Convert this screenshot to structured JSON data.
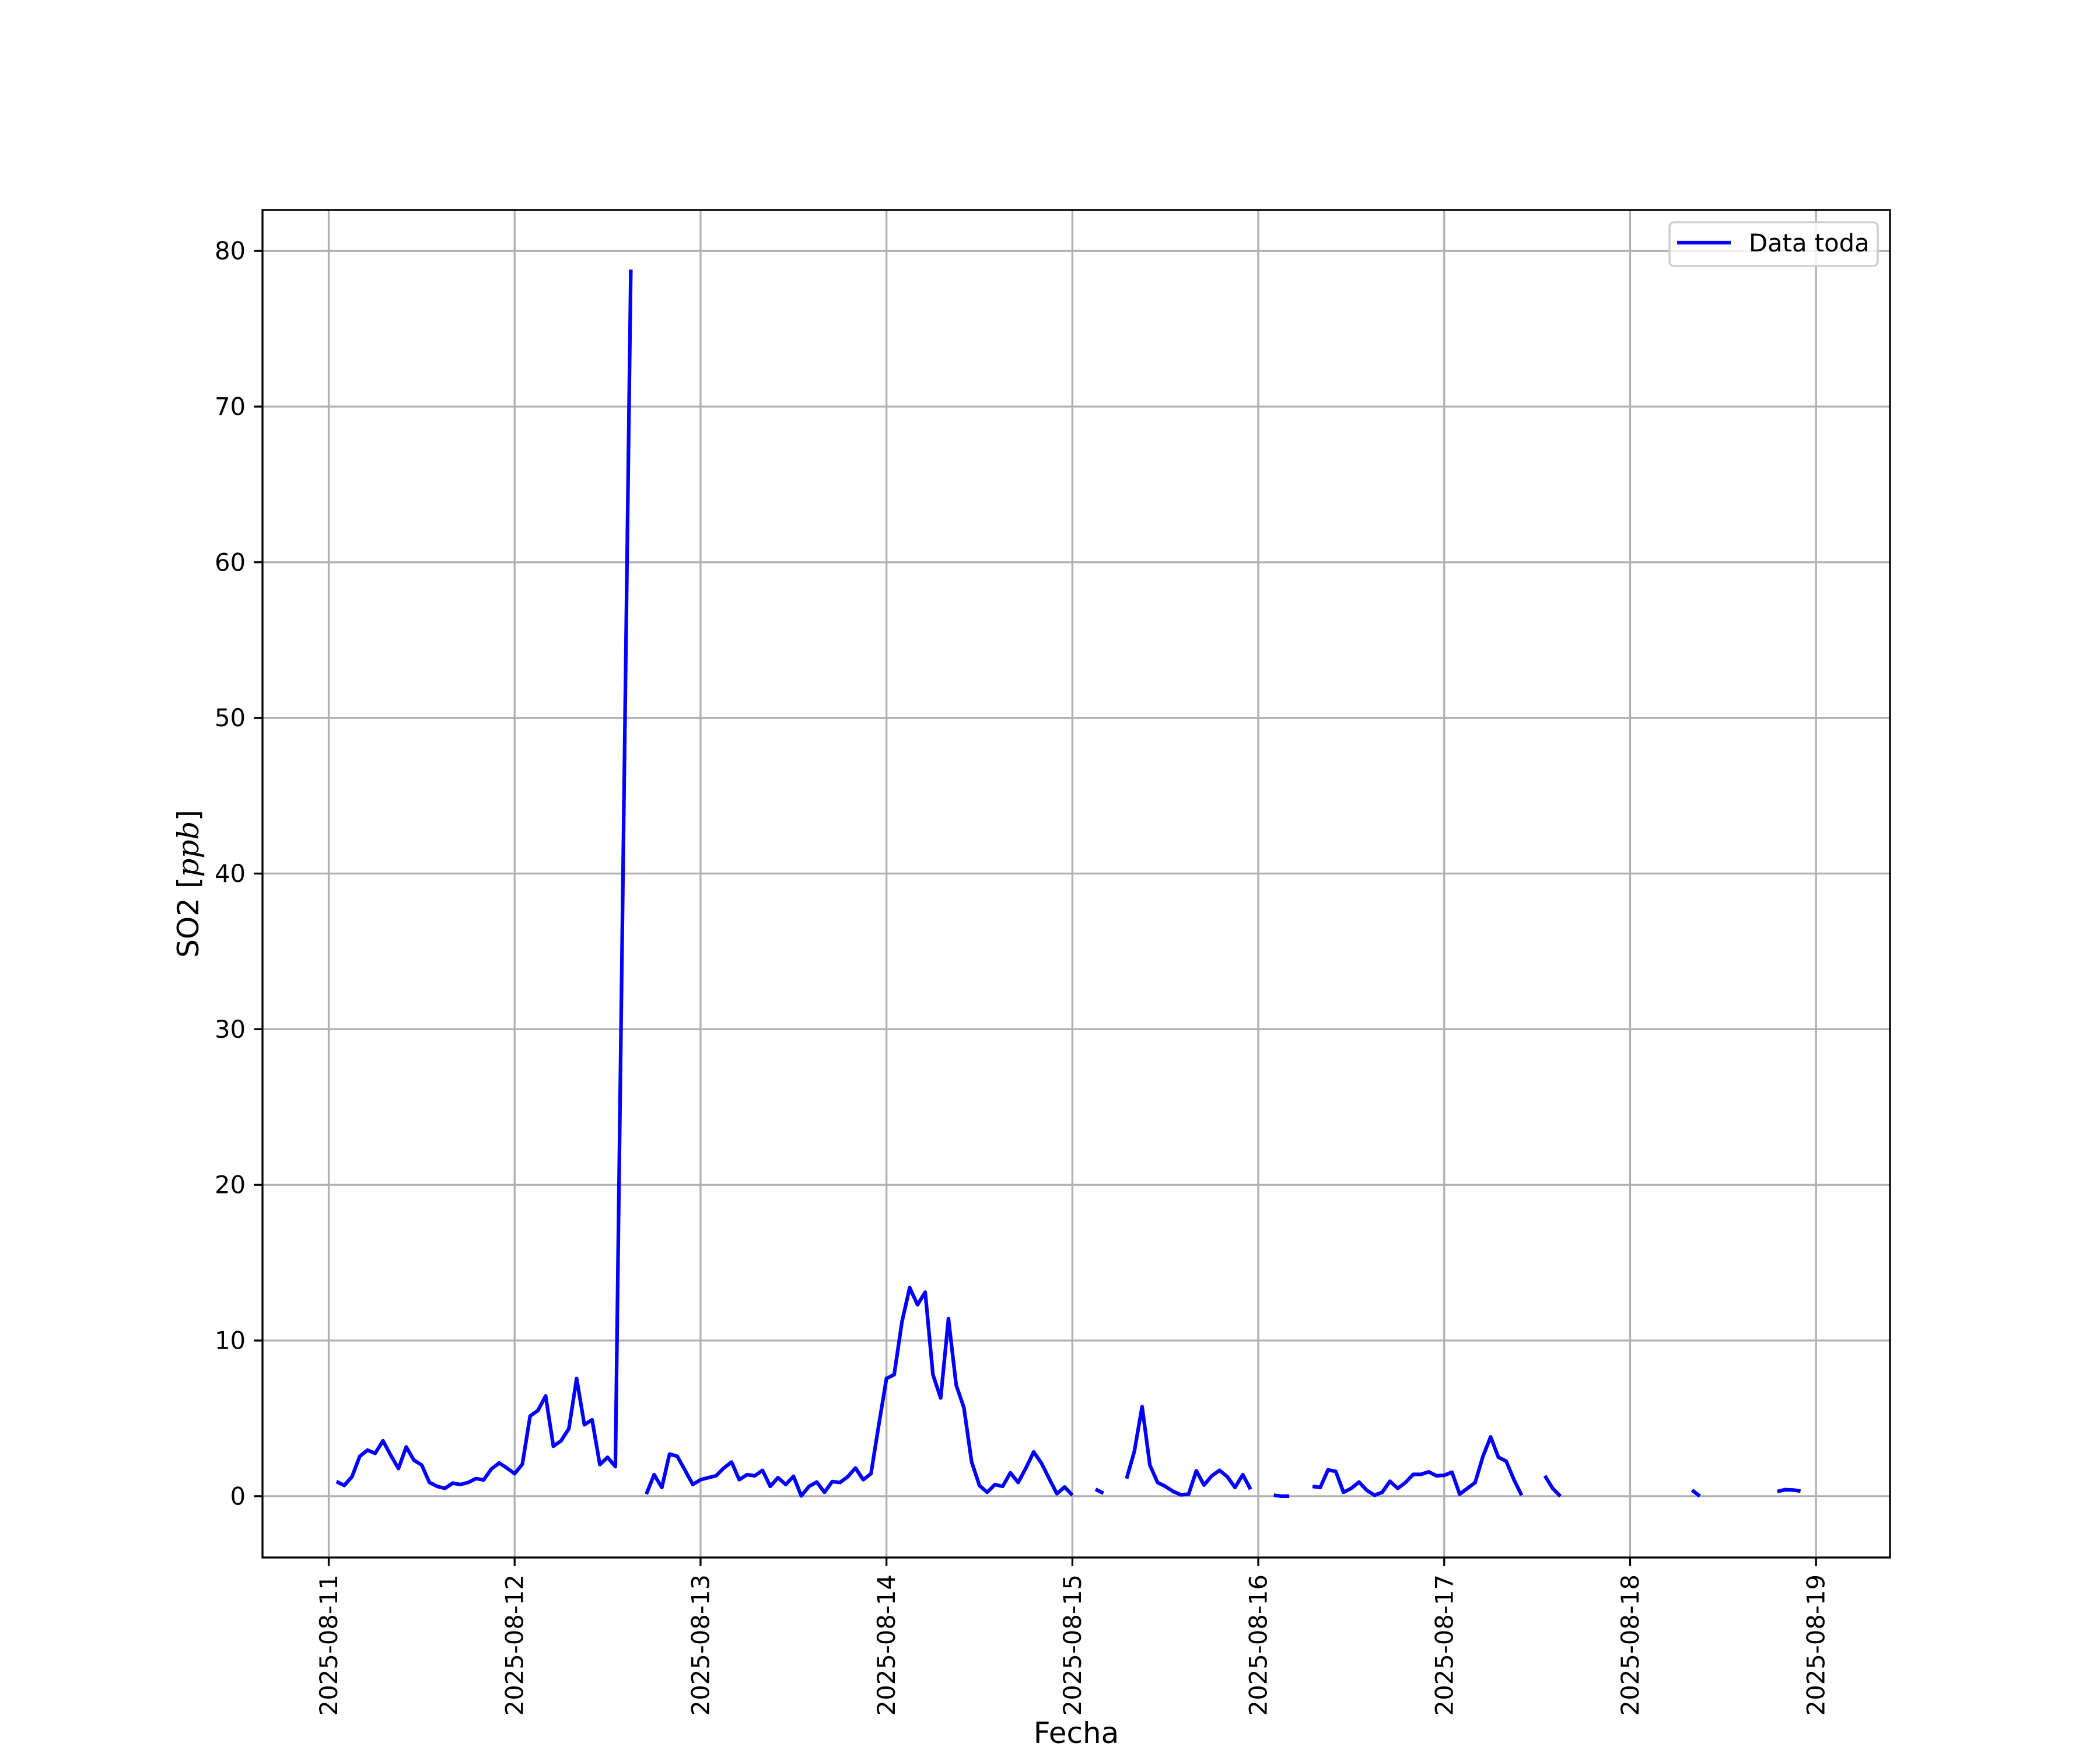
{
  "chart_data": {
    "type": "line",
    "title": "",
    "xlabel": "Fecha",
    "ylabel": "SO2 [ppb]",
    "ylabel_parts": {
      "prefix": "SO2 [",
      "unit": "ppb",
      "suffix": "]"
    },
    "xlim": [
      "2025-08-10 15:27",
      "2025-08-19 09:33"
    ],
    "ylim": [
      -3.94,
      82.63
    ],
    "grid": true,
    "legend_placement": "top-right",
    "x_ticks": [
      "2025-08-11",
      "2025-08-12",
      "2025-08-13",
      "2025-08-14",
      "2025-08-15",
      "2025-08-16",
      "2025-08-17",
      "2025-08-18",
      "2025-08-19"
    ],
    "y_ticks": [
      0,
      10,
      20,
      30,
      40,
      50,
      60,
      70,
      80
    ],
    "series": [
      {
        "name": "Data toda",
        "color": "#0000ff",
        "segments": [
          [
            [
              "2025-08-11 01:00",
              0.94
            ],
            [
              "2025-08-11 02:00",
              0.69
            ],
            [
              "2025-08-11 03:00",
              1.25
            ],
            [
              "2025-08-11 04:00",
              2.56
            ],
            [
              "2025-08-11 05:00",
              2.96
            ],
            [
              "2025-08-11 06:00",
              2.75
            ],
            [
              "2025-08-11 07:00",
              3.56
            ],
            [
              "2025-08-11 08:00",
              2.63
            ],
            [
              "2025-08-11 09:00",
              1.78
            ],
            [
              "2025-08-11 10:00",
              3.16
            ],
            [
              "2025-08-11 11:00",
              2.31
            ],
            [
              "2025-08-11 12:00",
              2.0
            ],
            [
              "2025-08-11 13:00",
              0.88
            ],
            [
              "2025-08-11 14:00",
              0.63
            ],
            [
              "2025-08-11 15:00",
              0.5
            ],
            [
              "2025-08-11 16:00",
              0.84
            ],
            [
              "2025-08-11 17:00",
              0.75
            ],
            [
              "2025-08-11 18:00",
              0.88
            ],
            [
              "2025-08-11 19:00",
              1.13
            ],
            [
              "2025-08-11 20:00",
              1.04
            ],
            [
              "2025-08-11 21:00",
              1.75
            ],
            [
              "2025-08-11 22:00",
              2.13
            ],
            [
              "2025-08-11 23:00",
              1.81
            ],
            [
              "2025-08-12 00:00",
              1.44
            ],
            [
              "2025-08-12 01:00",
              2.06
            ],
            [
              "2025-08-12 02:00",
              5.15
            ],
            [
              "2025-08-12 03:00",
              5.5
            ],
            [
              "2025-08-12 04:00",
              6.44
            ],
            [
              "2025-08-12 05:00",
              3.21
            ],
            [
              "2025-08-12 06:00",
              3.56
            ],
            [
              "2025-08-12 07:00",
              4.34
            ],
            [
              "2025-08-12 08:00",
              7.56
            ],
            [
              "2025-08-12 09:00",
              4.59
            ],
            [
              "2025-08-12 10:00",
              4.91
            ],
            [
              "2025-08-12 11:00",
              2.03
            ],
            [
              "2025-08-12 12:00",
              2.5
            ],
            [
              "2025-08-12 13:00",
              1.9
            ],
            [
              "2025-08-12 15:00",
              78.8
            ]
          ],
          [
            [
              "2025-08-12 17:00",
              0.13
            ],
            [
              "2025-08-12 18:00",
              1.38
            ],
            [
              "2025-08-12 19:00",
              0.56
            ],
            [
              "2025-08-12 20:00",
              2.71
            ],
            [
              "2025-08-12 21:00",
              2.56
            ],
            [
              "2025-08-12 22:00",
              1.66
            ],
            [
              "2025-08-12 23:00",
              0.75
            ],
            [
              "2025-08-13 00:00",
              1.06
            ],
            [
              "2025-08-13 01:00",
              1.19
            ],
            [
              "2025-08-13 02:00",
              1.31
            ],
            [
              "2025-08-13 03:00",
              1.81
            ],
            [
              "2025-08-13 04:00",
              2.19
            ],
            [
              "2025-08-13 05:00",
              1.06
            ],
            [
              "2025-08-13 06:00",
              1.38
            ],
            [
              "2025-08-13 07:00",
              1.31
            ],
            [
              "2025-08-13 08:00",
              1.66
            ],
            [
              "2025-08-13 09:00",
              0.63
            ],
            [
              "2025-08-13 10:00",
              1.19
            ],
            [
              "2025-08-13 11:00",
              0.75
            ],
            [
              "2025-08-13 12:00",
              1.28
            ],
            [
              "2025-08-13 13:00",
              0.02
            ],
            [
              "2025-08-13 14:00",
              0.63
            ],
            [
              "2025-08-13 15:00",
              0.91
            ],
            [
              "2025-08-13 16:00",
              0.25
            ],
            [
              "2025-08-13 17:00",
              0.94
            ],
            [
              "2025-08-13 18:00",
              0.88
            ],
            [
              "2025-08-13 19:00",
              1.25
            ],
            [
              "2025-08-13 20:00",
              1.81
            ],
            [
              "2025-08-13 21:00",
              1.06
            ],
            [
              "2025-08-13 22:00",
              1.44
            ],
            [
              "2025-08-13 23:00",
              4.56
            ],
            [
              "2025-08-14 00:00",
              7.56
            ],
            [
              "2025-08-14 01:00",
              7.81
            ],
            [
              "2025-08-14 02:00",
              11.2
            ],
            [
              "2025-08-14 03:00",
              13.4
            ],
            [
              "2025-08-14 04:00",
              12.3
            ],
            [
              "2025-08-14 05:00",
              13.1
            ],
            [
              "2025-08-14 06:00",
              7.81
            ],
            [
              "2025-08-14 07:00",
              6.31
            ],
            [
              "2025-08-14 08:00",
              11.4
            ],
            [
              "2025-08-14 09:00",
              7.13
            ],
            [
              "2025-08-14 10:00",
              5.69
            ],
            [
              "2025-08-14 11:00",
              2.19
            ],
            [
              "2025-08-14 12:00",
              0.69
            ],
            [
              "2025-08-14 13:00",
              0.25
            ],
            [
              "2025-08-14 14:00",
              0.75
            ],
            [
              "2025-08-14 15:00",
              0.63
            ],
            [
              "2025-08-14 16:00",
              1.5
            ],
            [
              "2025-08-14 17:00",
              0.88
            ],
            [
              "2025-08-14 18:00",
              1.81
            ],
            [
              "2025-08-14 19:00",
              2.84
            ],
            [
              "2025-08-14 20:00",
              2.13
            ],
            [
              "2025-08-14 21:00",
              1.13
            ],
            [
              "2025-08-14 22:00",
              0.16
            ],
            [
              "2025-08-14 23:00",
              0.59
            ],
            [
              "2025-08-15 00:00",
              0.06
            ]
          ],
          [
            [
              "2025-08-15 03:00",
              0.44
            ],
            [
              "2025-08-15 04:00",
              0.19
            ]
          ],
          [
            [
              "2025-08-15 07:00",
              1.13
            ],
            [
              "2025-08-15 08:00",
              2.88
            ],
            [
              "2025-08-15 09:00",
              5.75
            ],
            [
              "2025-08-15 10:00",
              2.0
            ],
            [
              "2025-08-15 11:00",
              0.88
            ],
            [
              "2025-08-15 12:00",
              0.63
            ],
            [
              "2025-08-15 13:00",
              0.31
            ],
            [
              "2025-08-15 14:00",
              0.09
            ],
            [
              "2025-08-15 15:00",
              0.13
            ],
            [
              "2025-08-15 16:00",
              1.63
            ],
            [
              "2025-08-15 17:00",
              0.71
            ],
            [
              "2025-08-15 18:00",
              1.31
            ],
            [
              "2025-08-15 19:00",
              1.66
            ],
            [
              "2025-08-15 20:00",
              1.25
            ],
            [
              "2025-08-15 21:00",
              0.56
            ],
            [
              "2025-08-15 22:00",
              1.38
            ],
            [
              "2025-08-15 23:00",
              0.44
            ]
          ],
          [
            [
              "2025-08-16 02:00",
              0.06
            ],
            [
              "2025-08-16 03:00",
              0.0
            ],
            [
              "2025-08-16 04:00",
              0.0
            ]
          ],
          [
            [
              "2025-08-16 07:00",
              0.63
            ],
            [
              "2025-08-16 08:00",
              0.56
            ],
            [
              "2025-08-16 09:00",
              1.69
            ],
            [
              "2025-08-16 10:00",
              1.59
            ],
            [
              "2025-08-16 11:00",
              0.25
            ],
            [
              "2025-08-16 12:00",
              0.5
            ],
            [
              "2025-08-16 13:00",
              0.91
            ],
            [
              "2025-08-16 14:00",
              0.38
            ],
            [
              "2025-08-16 15:00",
              0.06
            ],
            [
              "2025-08-16 16:00",
              0.25
            ],
            [
              "2025-08-16 17:00",
              0.96
            ],
            [
              "2025-08-16 18:00",
              0.5
            ],
            [
              "2025-08-16 19:00",
              0.88
            ],
            [
              "2025-08-16 20:00",
              1.4
            ],
            [
              "2025-08-16 21:00",
              1.4
            ],
            [
              "2025-08-16 22:00",
              1.56
            ],
            [
              "2025-08-16 23:00",
              1.31
            ],
            [
              "2025-08-17 00:00",
              1.34
            ],
            [
              "2025-08-17 01:00",
              1.54
            ],
            [
              "2025-08-17 02:00",
              0.13
            ],
            [
              "2025-08-17 03:00",
              0.5
            ],
            [
              "2025-08-17 04:00",
              0.88
            ],
            [
              "2025-08-17 05:00",
              2.56
            ],
            [
              "2025-08-17 06:00",
              3.81
            ],
            [
              "2025-08-17 07:00",
              2.5
            ],
            [
              "2025-08-17 08:00",
              2.25
            ],
            [
              "2025-08-17 09:00",
              1.06
            ],
            [
              "2025-08-17 10:00",
              0.06
            ]
          ],
          [
            [
              "2025-08-17 13:00",
              1.31
            ],
            [
              "2025-08-17 14:00",
              0.5
            ],
            [
              "2025-08-17 15:00",
              0.0
            ]
          ],
          [
            [
              "2025-08-18 08:00",
              0.39
            ],
            [
              "2025-08-18 09:00",
              0.0
            ]
          ],
          [
            [
              "2025-08-18 19:00",
              0.3
            ],
            [
              "2025-08-18 20:00",
              0.42
            ],
            [
              "2025-08-18 21:00",
              0.4
            ],
            [
              "2025-08-18 22:00",
              0.33
            ]
          ]
        ]
      }
    ]
  }
}
